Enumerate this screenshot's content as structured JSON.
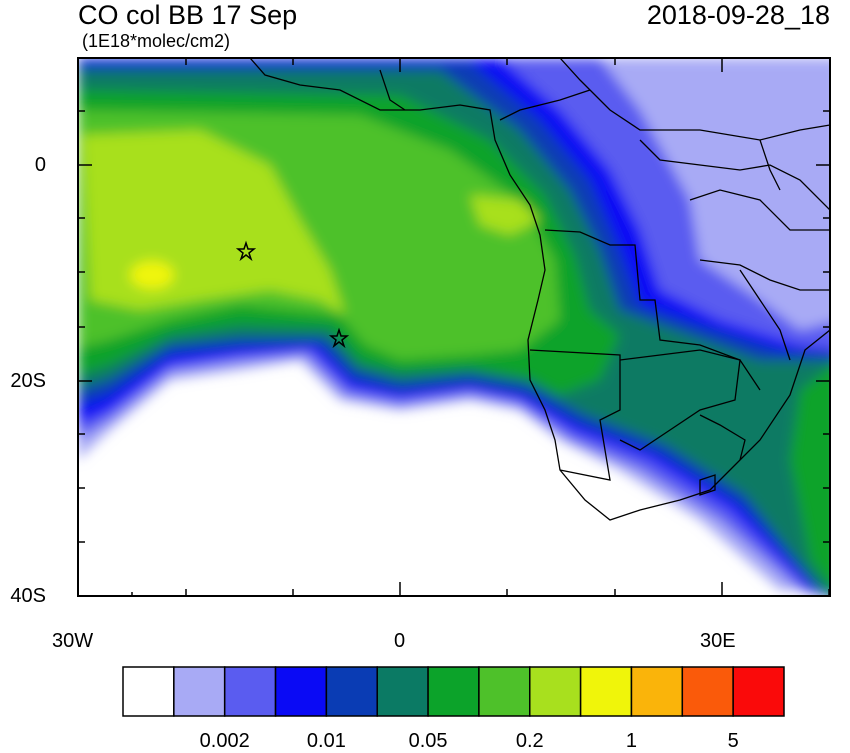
{
  "header": {
    "title": "CO col BB 17 Sep",
    "units": "(1E18*molec/cm2)",
    "timestamp": "2018-09-28_18"
  },
  "axes": {
    "y_ticks": [
      {
        "lat": 0,
        "label": "0"
      },
      {
        "lat": -20,
        "label": "20S"
      },
      {
        "lat": -40,
        "label": "40S"
      }
    ],
    "x_ticks": [
      {
        "lon": -30,
        "label": "30W"
      },
      {
        "lon": 0,
        "label": "0"
      },
      {
        "lon": 30,
        "label": "30E"
      }
    ],
    "lon_range": [
      -30,
      40
    ],
    "lat_range": [
      -40,
      10
    ]
  },
  "colorbar": {
    "colors": [
      "#ffffff",
      "#a8aaf5",
      "#5a5cf0",
      "#0a0af5",
      "#0a3cb4",
      "#0b7a64",
      "#0ca32a",
      "#4ec12a",
      "#a8e01e",
      "#f0f50a",
      "#fab40a",
      "#fa5a0a",
      "#fa0a0a"
    ],
    "labels": [
      "0.002",
      "0.01",
      "0.05",
      "0.2",
      "1",
      "5"
    ]
  },
  "markers": [
    {
      "name": "star-marker-1",
      "lon": -14.4,
      "lat": -8
    },
    {
      "name": "star-marker-2",
      "lon": -5.7,
      "lat": -15.9
    }
  ]
}
